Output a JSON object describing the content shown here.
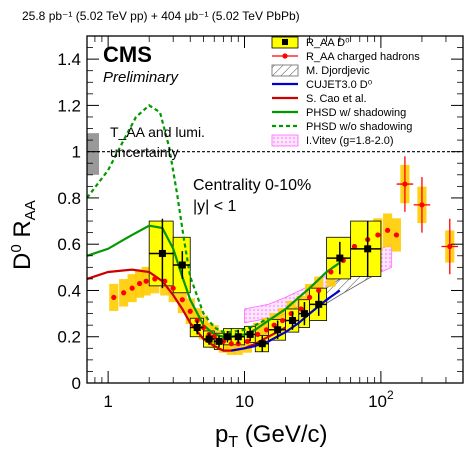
{
  "header": {
    "lumi_line": "25.8 pb⁻¹ (5.02 TeV pp) + 404 μb⁻¹ (5.02 TeV PbPb)"
  },
  "labels": {
    "experiment": "CMS",
    "status": "Preliminary",
    "norm_unc": "T_AA and lumi.",
    "norm_unc_line2": "uncertainty",
    "centrality": "Centrality 0-10%",
    "rapidity": "|y| < 1"
  },
  "colors": {
    "d0_box": "#ffff00",
    "charged_band": "#ffcc00",
    "charged_marker": "#ff0000",
    "djordjevic": "#666666",
    "cujet": "#0000cc",
    "cao": "#cc0000",
    "phsd": "#009900",
    "vitev": "#ff66ff",
    "norm_box": "#999999"
  },
  "chart_data": {
    "type": "scatter",
    "xlabel": "p_T (GeV/c)",
    "ylabel": "D⁰ R_AA",
    "xscale": "log",
    "xlim": [
      0.7,
      400
    ],
    "ylim": [
      0,
      1.5
    ],
    "xticks": [
      1,
      10,
      100
    ],
    "xtick_labels": [
      "1",
      "10",
      "10²"
    ],
    "yticks": [
      0,
      0.2,
      0.4,
      0.6,
      0.8,
      1,
      1.2,
      1.4
    ],
    "reference_line": 1,
    "legend": [
      "R_AA D⁰",
      "R_AA charged hadrons",
      "M. Djordjevic",
      "CUJET3.0 D⁰",
      "S. Cao et al.",
      "PHSD w/ shadowing",
      "PHSD w/o shadowing",
      "I.Vitev (g=1.8-2.0)"
    ],
    "series": [
      {
        "name": "R_AA D⁰",
        "x": [
          2.5,
          3.5,
          4.5,
          5.5,
          6.5,
          7.5,
          9,
          11,
          13.5,
          17.5,
          22.5,
          27.5,
          35,
          50,
          80
        ],
        "xerr": [
          0.5,
          0.5,
          0.5,
          0.5,
          0.5,
          0.5,
          1,
          1,
          1.5,
          2.5,
          2.5,
          2.5,
          5,
          10,
          20
        ],
        "y": [
          0.56,
          0.51,
          0.24,
          0.19,
          0.18,
          0.2,
          0.2,
          0.21,
          0.17,
          0.23,
          0.27,
          0.3,
          0.34,
          0.54,
          0.58
        ],
        "yerr": [
          0.15,
          0.06,
          0.03,
          0.025,
          0.025,
          0.025,
          0.03,
          0.03,
          0.035,
          0.04,
          0.04,
          0.05,
          0.05,
          0.07,
          0.12
        ],
        "syst": [
          0.14,
          0.12,
          0.04,
          0.035,
          0.035,
          0.035,
          0.035,
          0.035,
          0.035,
          0.045,
          0.05,
          0.06,
          0.07,
          0.09,
          0.12
        ]
      },
      {
        "name": "R_AA charged hadrons",
        "x": [
          1.1,
          1.3,
          1.5,
          1.7,
          1.9,
          2.2,
          2.6,
          3.0,
          3.5,
          4.0,
          4.5,
          5.0,
          5.5,
          6.0,
          7.0,
          8.0,
          9.0,
          10.5,
          12.5,
          14.5,
          16.5,
          19.0,
          22.0,
          26.0,
          30.0,
          35.0,
          43.0,
          53.0,
          64.0,
          80.0,
          95.0,
          112.0,
          130.0,
          150.0,
          200.0,
          320.0
        ],
        "y": [
          0.37,
          0.39,
          0.41,
          0.43,
          0.44,
          0.45,
          0.44,
          0.41,
          0.36,
          0.31,
          0.27,
          0.24,
          0.21,
          0.2,
          0.18,
          0.17,
          0.17,
          0.18,
          0.21,
          0.23,
          0.25,
          0.27,
          0.3,
          0.32,
          0.37,
          0.4,
          0.48,
          0.53,
          0.59,
          0.62,
          0.64,
          0.66,
          0.64,
          0.86,
          0.77,
          0.59
        ]
      },
      {
        "name": "M. Djordjevic",
        "x": [
          8,
          12,
          20,
          30,
          50,
          80,
          100
        ],
        "ylow": [
          0.18,
          0.2,
          0.24,
          0.3,
          0.38,
          0.45,
          0.48
        ],
        "yhigh": [
          0.22,
          0.25,
          0.3,
          0.36,
          0.45,
          0.52,
          0.56
        ]
      },
      {
        "name": "CUJET3.0 D⁰",
        "x": [
          8,
          10,
          12,
          15,
          20,
          25,
          30,
          40,
          50
        ],
        "y": [
          0.14,
          0.15,
          0.16,
          0.18,
          0.22,
          0.26,
          0.3,
          0.36,
          0.4
        ]
      },
      {
        "name": "S. Cao et al.",
        "x": [
          0.7,
          1.0,
          1.5,
          2.0,
          2.5,
          3.0,
          3.5,
          4.0,
          5.0,
          6.0,
          7.0,
          8.0,
          10,
          12,
          15,
          20
        ],
        "y": [
          0.45,
          0.48,
          0.49,
          0.48,
          0.44,
          0.38,
          0.32,
          0.26,
          0.19,
          0.16,
          0.14,
          0.14,
          0.15,
          0.17,
          0.2,
          0.24
        ]
      },
      {
        "name": "PHSD w/ shadowing",
        "x": [
          0.7,
          1.0,
          1.5,
          2.0,
          2.5,
          3.0,
          3.5,
          4.0,
          5.0,
          6.0,
          7.0,
          8.0,
          10,
          12,
          15,
          20,
          25,
          30,
          40,
          50
        ],
        "y": [
          0.55,
          0.58,
          0.64,
          0.68,
          0.67,
          0.58,
          0.46,
          0.36,
          0.25,
          0.21,
          0.2,
          0.2,
          0.21,
          0.23,
          0.27,
          0.32,
          0.37,
          0.41,
          0.48,
          0.52
        ]
      },
      {
        "name": "PHSD w/o shadowing",
        "x": [
          0.7,
          1.0,
          1.3,
          1.6,
          2.0,
          2.4,
          2.8,
          3.2,
          3.6,
          4.0,
          5.0,
          6.0,
          7.0,
          8.0,
          10,
          12,
          15
        ],
        "y": [
          0.8,
          0.92,
          1.05,
          1.15,
          1.2,
          1.17,
          1.02,
          0.82,
          0.62,
          0.46,
          0.3,
          0.24,
          0.22,
          0.22,
          0.23,
          0.25,
          0.28
        ]
      },
      {
        "name": "I.Vitev (g=1.8-2.0)",
        "x": [
          10,
          15,
          20,
          30,
          50,
          80,
          100,
          120
        ],
        "ylow": [
          0.26,
          0.28,
          0.3,
          0.34,
          0.4,
          0.46,
          0.48,
          0.5
        ],
        "yhigh": [
          0.32,
          0.34,
          0.37,
          0.42,
          0.5,
          0.56,
          0.58,
          0.6
        ]
      }
    ],
    "norm_uncertainty": {
      "ylow": 0.9,
      "yhigh": 1.08
    }
  }
}
